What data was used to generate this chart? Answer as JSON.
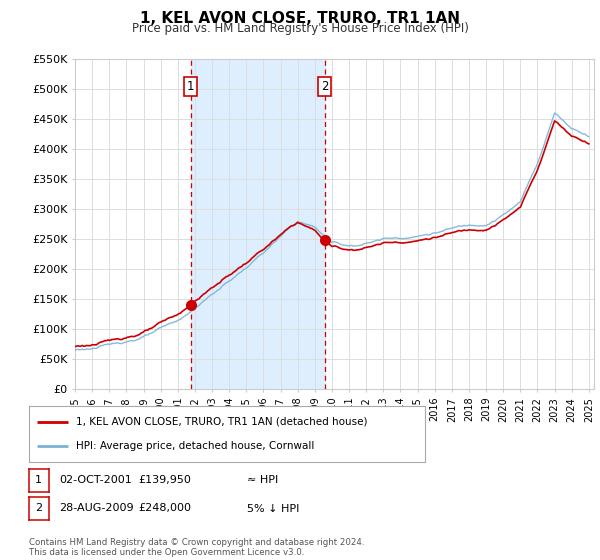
{
  "title": "1, KEL AVON CLOSE, TRURO, TR1 1AN",
  "subtitle": "Price paid vs. HM Land Registry's House Price Index (HPI)",
  "ylim": [
    0,
    550000
  ],
  "yticks": [
    0,
    50000,
    100000,
    150000,
    200000,
    250000,
    300000,
    350000,
    400000,
    450000,
    500000,
    550000
  ],
  "sale1_price": 139950,
  "sale1_date_str": "02-OCT-2001",
  "sale1_year": 2001.75,
  "sale2_price": 248000,
  "sale2_date_str": "28-AUG-2009",
  "sale2_year": 2009.58,
  "house_color": "#cc0000",
  "hpi_color": "#7ab3d4",
  "shading_color": "#ddeeff",
  "vline_color": "#cc0000",
  "legend_house": "1, KEL AVON CLOSE, TRURO, TR1 1AN (detached house)",
  "legend_hpi": "HPI: Average price, detached house, Cornwall",
  "table_row1": [
    "1",
    "02-OCT-2001",
    "£139,950",
    "≈ HPI"
  ],
  "table_row2": [
    "2",
    "28-AUG-2009",
    "£248,000",
    "5% ↓ HPI"
  ],
  "footer": "Contains HM Land Registry data © Crown copyright and database right 2024.\nThis data is licensed under the Open Government Licence v3.0.",
  "background_color": "#ffffff",
  "grid_color": "#dddddd"
}
